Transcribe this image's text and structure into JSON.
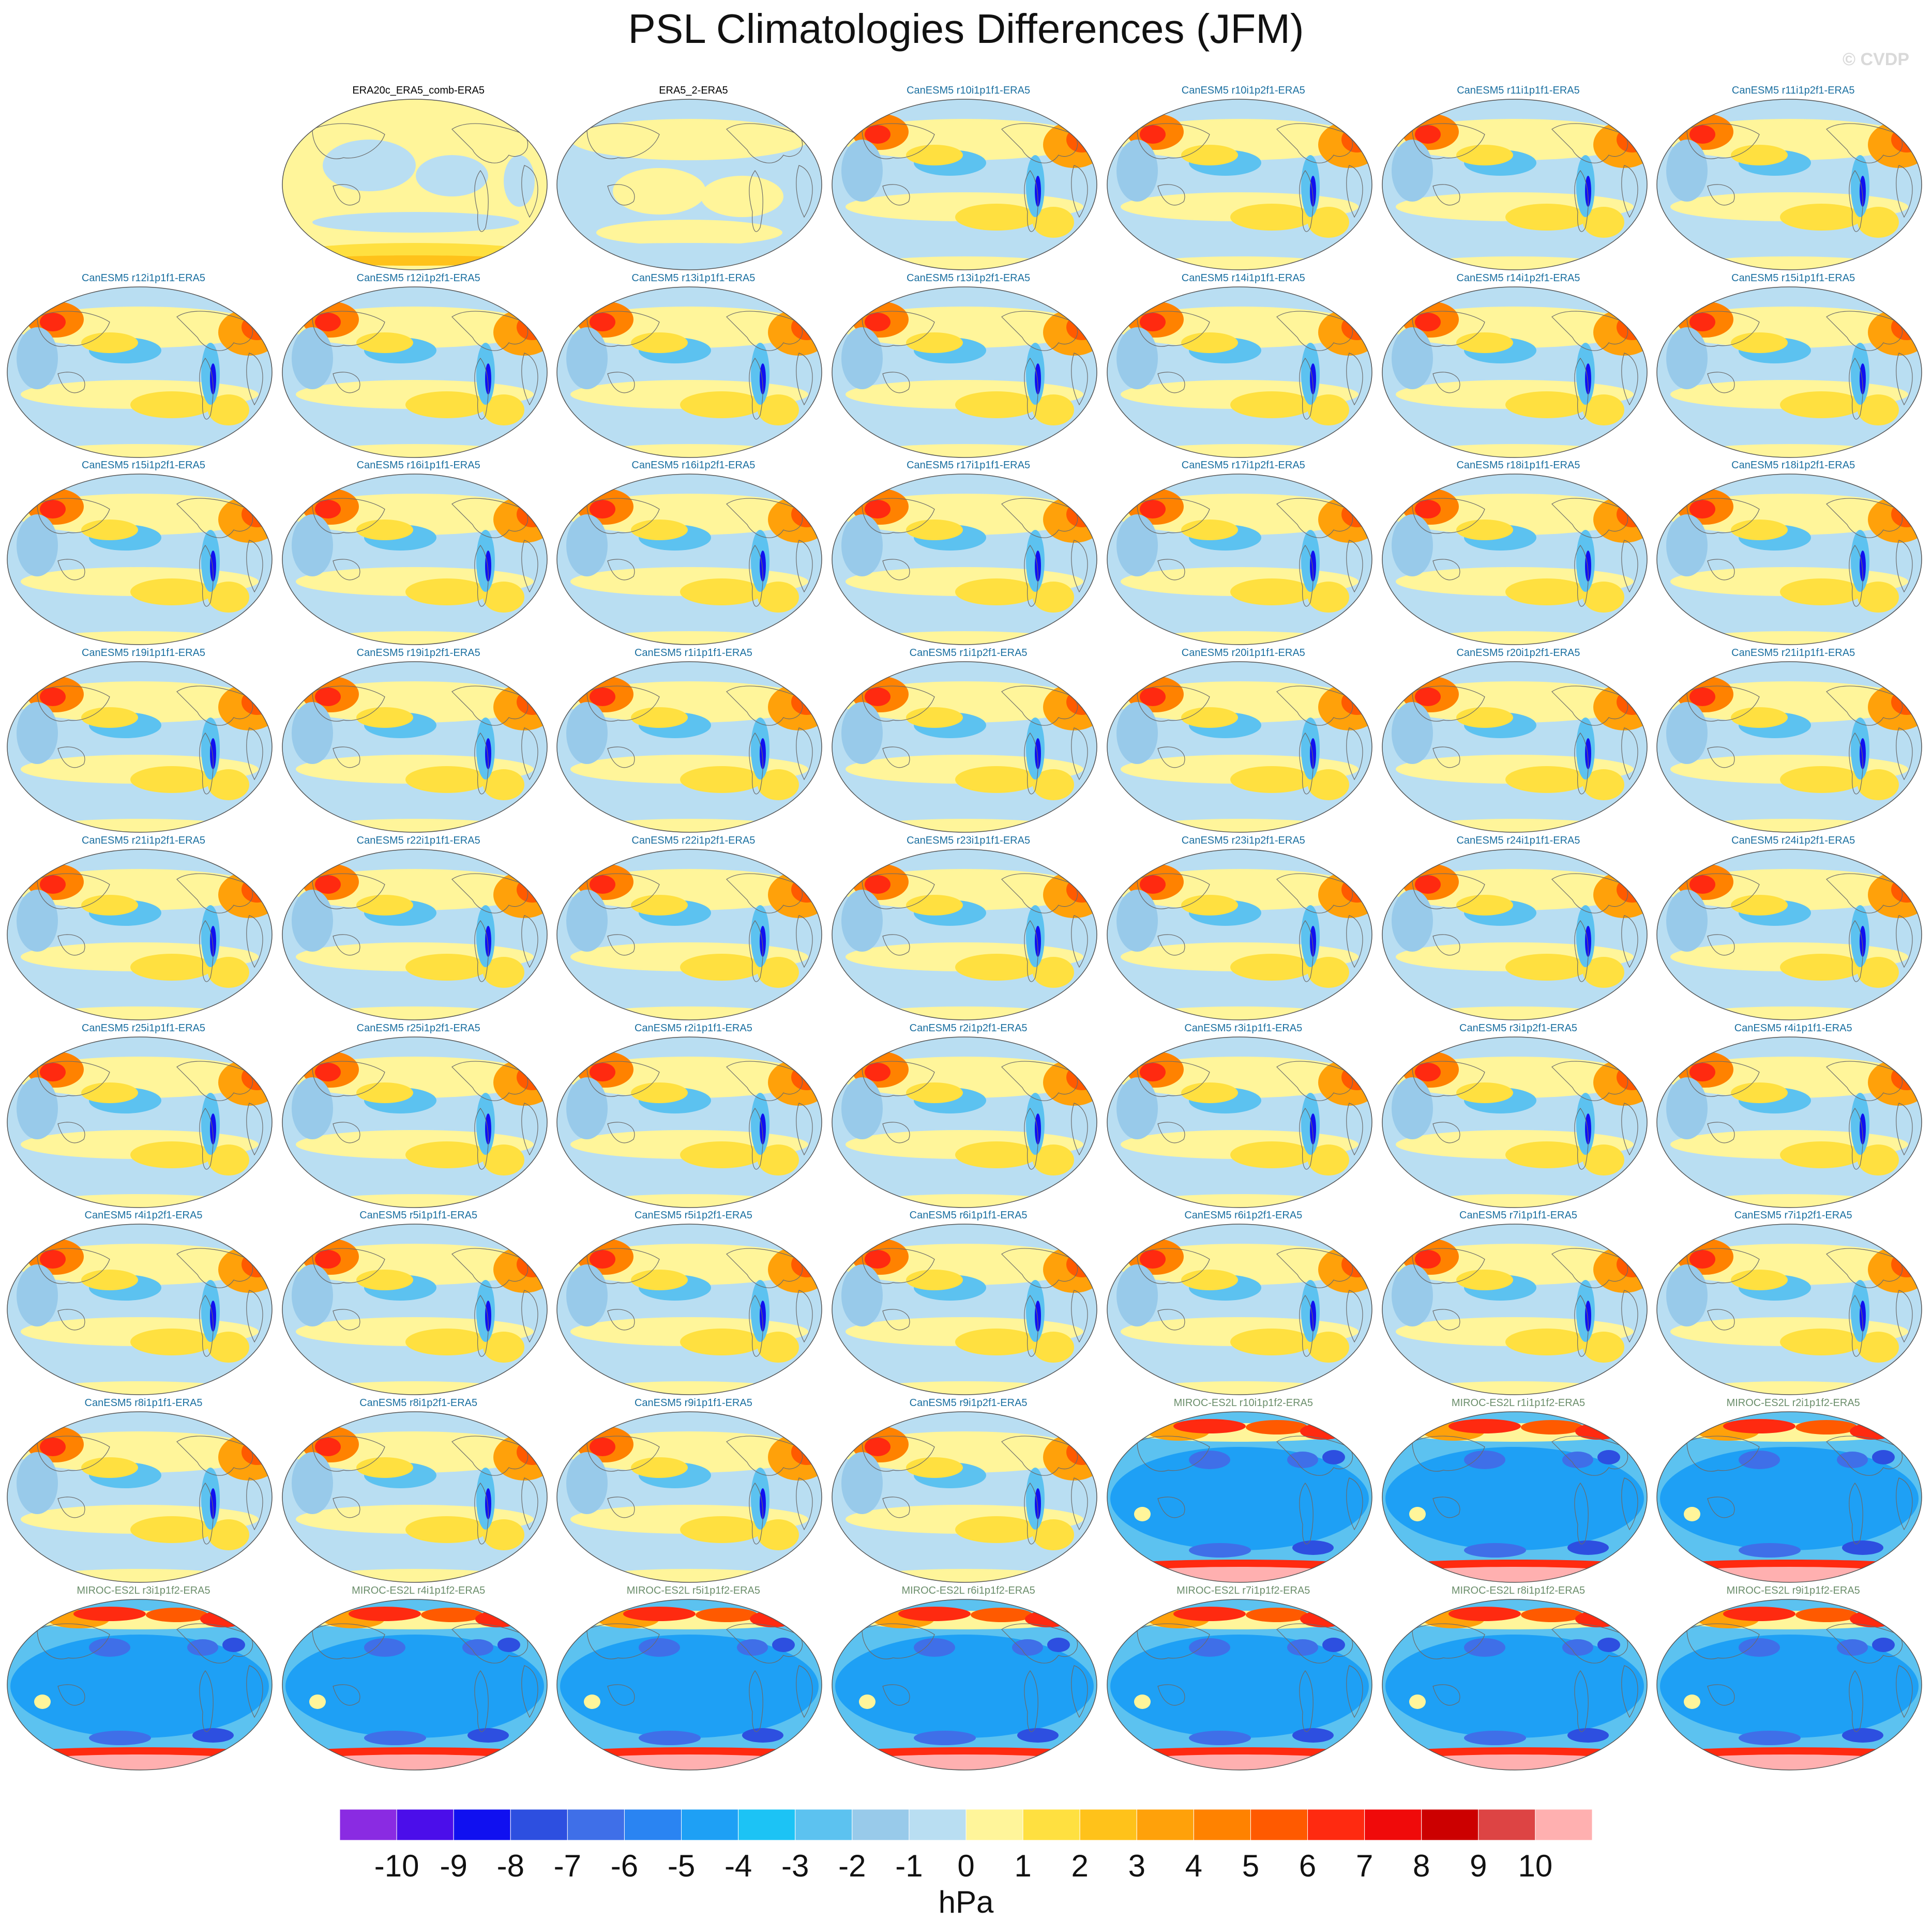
{
  "title": "PSL Climatologies Differences (JFM)",
  "credit": "© CVDP",
  "units": "hPa",
  "colorbar": {
    "tick_labels": [
      "-10",
      "-9",
      "-8",
      "-7",
      "-6",
      "-5",
      "-4",
      "-3",
      "-2",
      "-1",
      "0",
      "1",
      "2",
      "3",
      "4",
      "5",
      "6",
      "7",
      "8",
      "9",
      "10"
    ],
    "colors": [
      "#8a2be2",
      "#4b0eea",
      "#1010f0",
      "#2d4fe0",
      "#3f6fe8",
      "#2a84f2",
      "#1ea0f5",
      "#1cc3f5",
      "#5cc2f0",
      "#98caea",
      "#b9def2",
      "#fff59a",
      "#ffe040",
      "#ffc21a",
      "#ffa10a",
      "#ff8200",
      "#ff5a00",
      "#ff2a10",
      "#f00a0a",
      "#cc0000",
      "#dd4444",
      "#ffb0b0"
    ]
  },
  "panels": [
    {
      "label": "ERA20c_ERA5_comb-ERA5",
      "pattern": "obs1",
      "color": "#000000"
    },
    {
      "label": "ERA5_2-ERA5",
      "pattern": "obs2",
      "color": "#000000"
    },
    {
      "label": "CanESM5 r10i1p1f1-ERA5",
      "pattern": "can",
      "color": "#1a6fa0"
    },
    {
      "label": "CanESM5 r10i1p2f1-ERA5",
      "pattern": "can",
      "color": "#1a6fa0"
    },
    {
      "label": "CanESM5 r11i1p1f1-ERA5",
      "pattern": "can",
      "color": "#1a6fa0"
    },
    {
      "label": "CanESM5 r11i1p2f1-ERA5",
      "pattern": "can",
      "color": "#1a6fa0"
    },
    {
      "label": "CanESM5 r12i1p1f1-ERA5",
      "pattern": "can",
      "color": "#1a6fa0"
    },
    {
      "label": "CanESM5 r12i1p2f1-ERA5",
      "pattern": "can",
      "color": "#1a6fa0"
    },
    {
      "label": "CanESM5 r13i1p1f1-ERA5",
      "pattern": "can",
      "color": "#1a6fa0"
    },
    {
      "label": "CanESM5 r13i1p2f1-ERA5",
      "pattern": "can",
      "color": "#1a6fa0"
    },
    {
      "label": "CanESM5 r14i1p1f1-ERA5",
      "pattern": "can",
      "color": "#1a6fa0"
    },
    {
      "label": "CanESM5 r14i1p2f1-ERA5",
      "pattern": "can",
      "color": "#1a6fa0"
    },
    {
      "label": "CanESM5 r15i1p1f1-ERA5",
      "pattern": "can",
      "color": "#1a6fa0"
    },
    {
      "label": "CanESM5 r15i1p2f1-ERA5",
      "pattern": "can",
      "color": "#1a6fa0"
    },
    {
      "label": "CanESM5 r16i1p1f1-ERA5",
      "pattern": "can",
      "color": "#1a6fa0"
    },
    {
      "label": "CanESM5 r16i1p2f1-ERA5",
      "pattern": "can",
      "color": "#1a6fa0"
    },
    {
      "label": "CanESM5 r17i1p1f1-ERA5",
      "pattern": "can",
      "color": "#1a6fa0"
    },
    {
      "label": "CanESM5 r17i1p2f1-ERA5",
      "pattern": "can",
      "color": "#1a6fa0"
    },
    {
      "label": "CanESM5 r18i1p1f1-ERA5",
      "pattern": "can",
      "color": "#1a6fa0"
    },
    {
      "label": "CanESM5 r18i1p2f1-ERA5",
      "pattern": "can",
      "color": "#1a6fa0"
    },
    {
      "label": "CanESM5 r19i1p1f1-ERA5",
      "pattern": "can",
      "color": "#1a6fa0"
    },
    {
      "label": "CanESM5 r19i1p2f1-ERA5",
      "pattern": "can",
      "color": "#1a6fa0"
    },
    {
      "label": "CanESM5 r1i1p1f1-ERA5",
      "pattern": "can",
      "color": "#1a6fa0"
    },
    {
      "label": "CanESM5 r1i1p2f1-ERA5",
      "pattern": "can",
      "color": "#1a6fa0"
    },
    {
      "label": "CanESM5 r20i1p1f1-ERA5",
      "pattern": "can",
      "color": "#1a6fa0"
    },
    {
      "label": "CanESM5 r20i1p2f1-ERA5",
      "pattern": "can",
      "color": "#1a6fa0"
    },
    {
      "label": "CanESM5 r21i1p1f1-ERA5",
      "pattern": "can",
      "color": "#1a6fa0"
    },
    {
      "label": "CanESM5 r21i1p2f1-ERA5",
      "pattern": "can",
      "color": "#1a6fa0"
    },
    {
      "label": "CanESM5 r22i1p1f1-ERA5",
      "pattern": "can",
      "color": "#1a6fa0"
    },
    {
      "label": "CanESM5 r22i1p2f1-ERA5",
      "pattern": "can",
      "color": "#1a6fa0"
    },
    {
      "label": "CanESM5 r23i1p1f1-ERA5",
      "pattern": "can",
      "color": "#1a6fa0"
    },
    {
      "label": "CanESM5 r23i1p2f1-ERA5",
      "pattern": "can",
      "color": "#1a6fa0"
    },
    {
      "label": "CanESM5 r24i1p1f1-ERA5",
      "pattern": "can",
      "color": "#1a6fa0"
    },
    {
      "label": "CanESM5 r24i1p2f1-ERA5",
      "pattern": "can",
      "color": "#1a6fa0"
    },
    {
      "label": "CanESM5 r25i1p1f1-ERA5",
      "pattern": "can",
      "color": "#1a6fa0"
    },
    {
      "label": "CanESM5 r25i1p2f1-ERA5",
      "pattern": "can",
      "color": "#1a6fa0"
    },
    {
      "label": "CanESM5 r2i1p1f1-ERA5",
      "pattern": "can",
      "color": "#1a6fa0"
    },
    {
      "label": "CanESM5 r2i1p2f1-ERA5",
      "pattern": "can",
      "color": "#1a6fa0"
    },
    {
      "label": "CanESM5 r3i1p1f1-ERA5",
      "pattern": "can",
      "color": "#1a6fa0"
    },
    {
      "label": "CanESM5 r3i1p2f1-ERA5",
      "pattern": "can",
      "color": "#1a6fa0"
    },
    {
      "label": "CanESM5 r4i1p1f1-ERA5",
      "pattern": "can",
      "color": "#1a6fa0"
    },
    {
      "label": "CanESM5 r4i1p2f1-ERA5",
      "pattern": "can",
      "color": "#1a6fa0"
    },
    {
      "label": "CanESM5 r5i1p1f1-ERA5",
      "pattern": "can",
      "color": "#1a6fa0"
    },
    {
      "label": "CanESM5 r5i1p2f1-ERA5",
      "pattern": "can",
      "color": "#1a6fa0"
    },
    {
      "label": "CanESM5 r6i1p1f1-ERA5",
      "pattern": "can",
      "color": "#1a6fa0"
    },
    {
      "label": "CanESM5 r6i1p2f1-ERA5",
      "pattern": "can",
      "color": "#1a6fa0"
    },
    {
      "label": "CanESM5 r7i1p1f1-ERA5",
      "pattern": "can",
      "color": "#1a6fa0"
    },
    {
      "label": "CanESM5 r7i1p2f1-ERA5",
      "pattern": "can",
      "color": "#1a6fa0"
    },
    {
      "label": "CanESM5 r8i1p1f1-ERA5",
      "pattern": "can",
      "color": "#1a6fa0"
    },
    {
      "label": "CanESM5 r8i1p2f1-ERA5",
      "pattern": "can",
      "color": "#1a6fa0"
    },
    {
      "label": "CanESM5 r9i1p1f1-ERA5",
      "pattern": "can",
      "color": "#1a6fa0"
    },
    {
      "label": "CanESM5 r9i1p2f1-ERA5",
      "pattern": "can",
      "color": "#1a6fa0"
    },
    {
      "label": "MIROC-ES2L r10i1p1f2-ERA5",
      "pattern": "miroc",
      "color": "#6b8e6b"
    },
    {
      "label": "MIROC-ES2L r1i1p1f2-ERA5",
      "pattern": "miroc",
      "color": "#6b8e6b"
    },
    {
      "label": "MIROC-ES2L r2i1p1f2-ERA5",
      "pattern": "miroc",
      "color": "#6b8e6b"
    },
    {
      "label": "MIROC-ES2L r3i1p1f2-ERA5",
      "pattern": "miroc",
      "color": "#6b8e6b"
    },
    {
      "label": "MIROC-ES2L r4i1p1f2-ERA5",
      "pattern": "miroc",
      "color": "#6b8e6b"
    },
    {
      "label": "MIROC-ES2L r5i1p1f2-ERA5",
      "pattern": "miroc",
      "color": "#6b8e6b"
    },
    {
      "label": "MIROC-ES2L r6i1p1f2-ERA5",
      "pattern": "miroc",
      "color": "#6b8e6b"
    },
    {
      "label": "MIROC-ES2L r7i1p1f2-ERA5",
      "pattern": "miroc",
      "color": "#6b8e6b"
    },
    {
      "label": "MIROC-ES2L r8i1p1f2-ERA5",
      "pattern": "miroc",
      "color": "#6b8e6b"
    },
    {
      "label": "MIROC-ES2L r9i1p1f2-ERA5",
      "pattern": "miroc",
      "color": "#6b8e6b"
    }
  ]
}
